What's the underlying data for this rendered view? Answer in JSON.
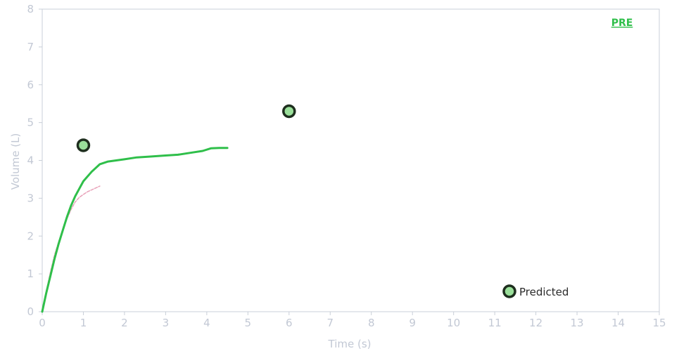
{
  "chart_data": {
    "type": "line",
    "title": "",
    "badge": "PRE",
    "xlabel": "Time (s)",
    "ylabel": "Volume (L)",
    "xlim": [
      0,
      15
    ],
    "ylim": [
      0,
      8
    ],
    "xticks": [
      0,
      1,
      2,
      3,
      4,
      5,
      6,
      7,
      8,
      9,
      10,
      11,
      12,
      13,
      14,
      15
    ],
    "yticks": [
      0,
      1,
      2,
      3,
      4,
      5,
      6,
      7,
      8
    ],
    "grid": false,
    "series": [
      {
        "color": "#2fbf4a",
        "x": [
          0,
          0.05,
          0.1,
          0.2,
          0.3,
          0.4,
          0.5,
          0.6,
          0.7,
          0.8,
          0.9,
          1.0,
          1.2,
          1.4,
          1.6,
          1.8,
          2.0,
          2.3,
          2.6,
          3.0,
          3.3,
          3.6,
          3.9,
          4.1,
          4.3,
          4.5
        ],
        "y": [
          0,
          0.25,
          0.5,
          0.95,
          1.4,
          1.8,
          2.15,
          2.5,
          2.8,
          3.05,
          3.25,
          3.45,
          3.7,
          3.9,
          3.97,
          4.0,
          4.03,
          4.08,
          4.1,
          4.13,
          4.15,
          4.2,
          4.25,
          4.32,
          4.33,
          4.33
        ]
      },
      {
        "color": "#e8a0b8",
        "x": [
          0,
          0.1,
          0.2,
          0.3,
          0.4,
          0.5,
          0.6,
          0.7,
          0.8,
          0.9,
          1.0,
          1.1,
          1.2,
          1.3,
          1.4
        ],
        "y": [
          0,
          0.55,
          1.05,
          1.5,
          1.85,
          2.15,
          2.45,
          2.7,
          2.9,
          3.02,
          3.1,
          3.17,
          3.22,
          3.27,
          3.32
        ],
        "style": "dashed"
      }
    ],
    "predicted_points": {
      "name": "Predicted",
      "points": [
        {
          "x": 1.0,
          "y": 4.4
        },
        {
          "x": 6.0,
          "y": 5.3
        }
      ]
    },
    "colors": {
      "badge": "#2fbf4a",
      "marker_fill": "#9adf9a",
      "marker_stroke": "#1e2e1e",
      "axis": "#c9cfd8"
    },
    "legend_position": "bottom-right"
  }
}
